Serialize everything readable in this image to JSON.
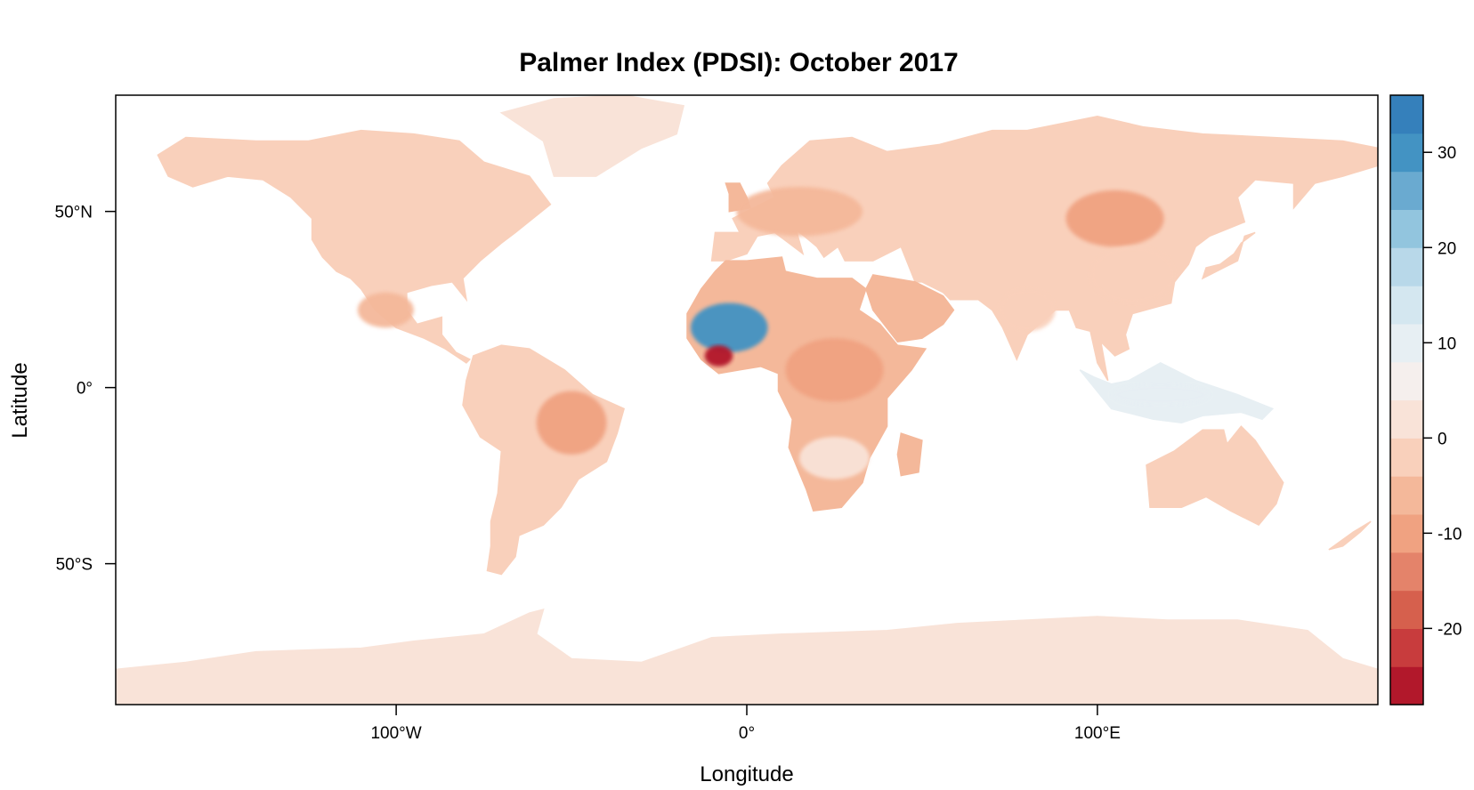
{
  "chart_data": {
    "type": "heatmap",
    "title": "Palmer Index (PDSI): October 2017",
    "xlabel": "Longitude",
    "ylabel": "Latitude",
    "xlim": [
      -180,
      180
    ],
    "ylim": [
      -90,
      83
    ],
    "x_ticks": [
      {
        "value": -100,
        "label": "100°W"
      },
      {
        "value": 0,
        "label": "0°"
      },
      {
        "value": 100,
        "label": "100°E"
      }
    ],
    "y_ticks": [
      {
        "value": 50,
        "label": "50°N"
      },
      {
        "value": 0,
        "label": "0°"
      },
      {
        "value": -50,
        "label": "50°S"
      }
    ],
    "colorbar": {
      "min": -28,
      "max": 36,
      "breaks": [
        -28,
        -24,
        -20,
        -16,
        -12,
        -8,
        -4,
        0,
        4,
        8,
        12,
        16,
        20,
        24,
        28,
        32,
        36
      ],
      "colors": [
        "#b2182b",
        "#c83c3d",
        "#d6604d",
        "#e4836a",
        "#f0a281",
        "#f4b89a",
        "#f9d0bb",
        "#f9e3d8",
        "#f5efed",
        "#e7eff3",
        "#d4e7f0",
        "#b8d8e9",
        "#92c5de",
        "#6aaad0",
        "#4393c3",
        "#3580bb",
        "#2166ac"
      ],
      "ticks": [
        {
          "value": 30,
          "label": "30"
        },
        {
          "value": 20,
          "label": "20"
        },
        {
          "value": 10,
          "label": "10"
        },
        {
          "value": 0,
          "label": "0"
        },
        {
          "value": -10,
          "label": "-10"
        },
        {
          "value": -20,
          "label": "-20"
        }
      ]
    },
    "regions": [
      {
        "name": "North America",
        "pdsi": -3
      },
      {
        "name": "Greenland",
        "pdsi": 2
      },
      {
        "name": "Mexico",
        "pdsi": -8
      },
      {
        "name": "South America",
        "pdsi": -3
      },
      {
        "name": "Eastern Brazil",
        "pdsi": -9
      },
      {
        "name": "Europe",
        "pdsi": -5
      },
      {
        "name": "Russia",
        "pdsi": -4
      },
      {
        "name": "Mongolia",
        "pdsi": -10
      },
      {
        "name": "West Africa (Sahel)",
        "pdsi": 28
      },
      {
        "name": "Guinea coast",
        "pdsi": -26
      },
      {
        "name": "Central Africa",
        "pdsi": -12
      },
      {
        "name": "Sahara / North Africa",
        "pdsi": -5
      },
      {
        "name": "Arabian Peninsula",
        "pdsi": -6
      },
      {
        "name": "Southern Africa",
        "pdsi": 3
      },
      {
        "name": "India",
        "pdsi": -4
      },
      {
        "name": "China",
        "pdsi": -3
      },
      {
        "name": "Southeast Asia",
        "pdsi": 10
      },
      {
        "name": "Australia",
        "pdsi": -3
      },
      {
        "name": "Antarctica",
        "pdsi": 0
      }
    ]
  }
}
